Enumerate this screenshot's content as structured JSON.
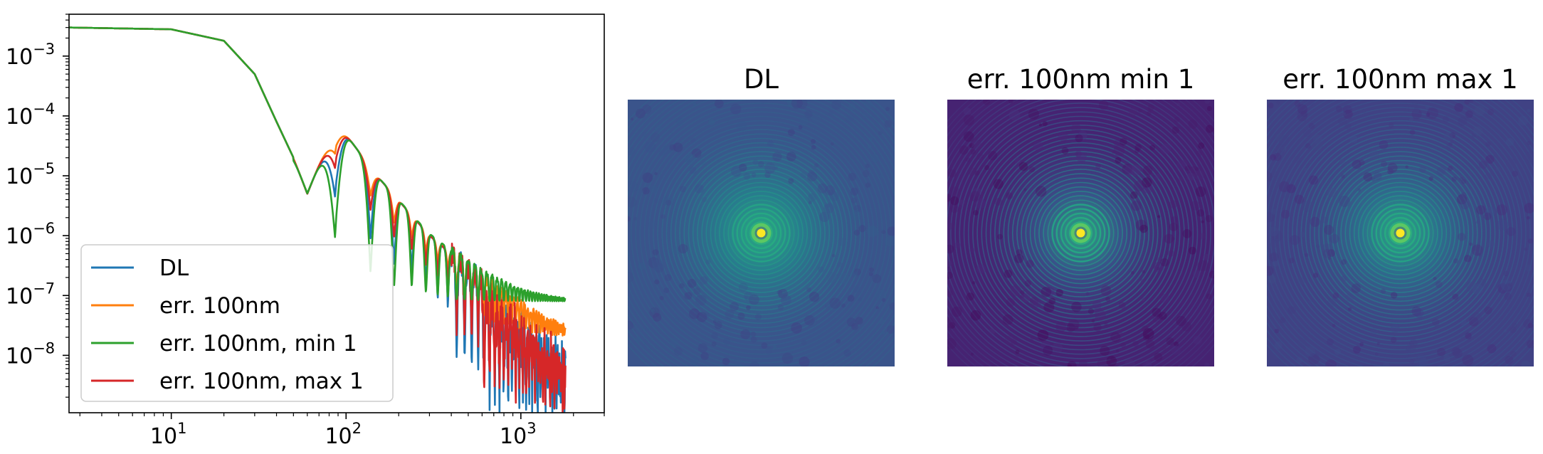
{
  "chart_data": [
    {
      "type": "line",
      "title": "",
      "xlabel": "",
      "ylabel": "",
      "xscale": "log",
      "yscale": "log",
      "xlim": [
        2.6,
        3000
      ],
      "ylim": [
        1.1e-09,
        0.005
      ],
      "xticks": [
        {
          "value": 10,
          "base": "10",
          "exp": "1"
        },
        {
          "value": 100,
          "base": "10",
          "exp": "2"
        },
        {
          "value": 1000,
          "base": "10",
          "exp": "3"
        }
      ],
      "yticks": [
        {
          "value": 1e-08,
          "base": "10",
          "exp": "−8"
        },
        {
          "value": 1e-07,
          "base": "10",
          "exp": "−7"
        },
        {
          "value": 1e-06,
          "base": "10",
          "exp": "−6"
        },
        {
          "value": 1e-05,
          "base": "10",
          "exp": "−5"
        },
        {
          "value": 0.0001,
          "base": "10",
          "exp": "−4"
        },
        {
          "value": 0.001,
          "base": "10",
          "exp": "−3"
        }
      ],
      "legend_position": "lower-left",
      "series": [
        {
          "name": "DL",
          "color": "#1f77b4",
          "floor": 3e-09,
          "end_value": 3.5e-09,
          "noise": 1.6,
          "min_decades": 1.0
        },
        {
          "name": "err. 100nm",
          "color": "#ff7f0e",
          "floor": 2e-08,
          "end_value": 2e-08,
          "noise": 1.0,
          "min_decades": 0.4
        },
        {
          "name": "err. 100nm, min 1",
          "color": "#2ca02c",
          "floor": 8e-08,
          "end_value": 8e-08,
          "noise": 0.6,
          "min_decades": 1.6
        },
        {
          "name": "err. 100nm, max 1",
          "color": "#d62728",
          "floor": 5e-09,
          "end_value": 6e-09,
          "noise": 1.5,
          "min_decades": 0.6
        }
      ],
      "envelope_points": [
        {
          "x": 2.6,
          "y": 0.003
        },
        {
          "x": 10,
          "y": 0.0028
        },
        {
          "x": 20,
          "y": 0.0018
        },
        {
          "x": 30,
          "y": 0.0005
        },
        {
          "x": 40,
          "y": 8e-05
        },
        {
          "x": 50,
          "y": 2e-05
        },
        {
          "x": 60,
          "y": 5e-06
        },
        {
          "x": 88,
          "y": 8e-05
        },
        {
          "x": 150,
          "y": 1e-05
        },
        {
          "x": 300,
          "y": 1e-06
        },
        {
          "x": 1000,
          "y": 5e-08
        },
        {
          "x": 1800,
          "y": 1e-08
        }
      ]
    },
    {
      "type": "heatmap",
      "title": "DL",
      "colormap": "viridis",
      "center": "bright yellow peak with concentric rings",
      "background_level": 0.26
    },
    {
      "type": "heatmap",
      "title": "err. 100nm min 1",
      "colormap": "viridis",
      "center": "bright yellow peak with concentric rings",
      "background_level": 0.1
    },
    {
      "type": "heatmap",
      "title": "err. 100nm max 1",
      "colormap": "viridis",
      "center": "bright yellow peak with concentric rings",
      "background_level": 0.2
    }
  ]
}
